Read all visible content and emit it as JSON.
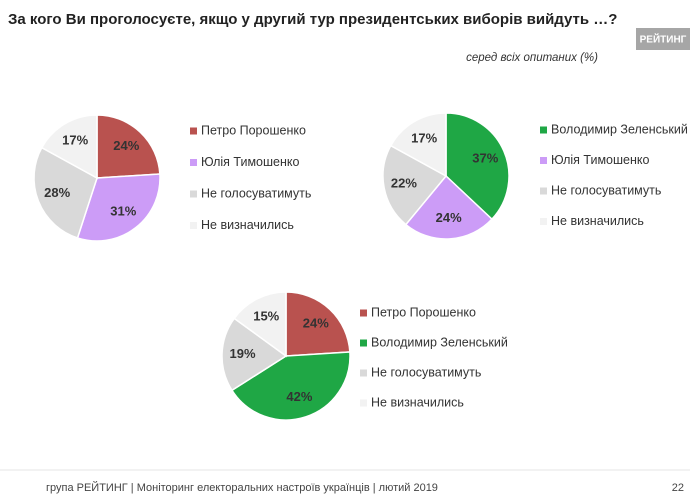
{
  "title": "За кого Ви проголосуєте, якщо у другий тур президентських виборів вийдуть …?",
  "subtitle": "серед всіх опитаних (%)",
  "logo": "РЕЙТИНГ",
  "footer": "група РЕЙТИНГ |  Моніторинг електоральних настроїв українців | лютий  2019",
  "page_number": "22",
  "chart_data": [
    {
      "type": "pie",
      "categories": [
        "Петро Порошенко",
        "Юлія Тимошенко",
        "Не голосуватимуть",
        "Не визначились"
      ],
      "values": [
        24,
        31,
        28,
        17
      ],
      "value_labels": [
        "24%",
        "31%",
        "28%",
        "17%"
      ],
      "colors": [
        "#b9524f",
        "#cc9cf7",
        "#d9d9d9",
        "#f2f2f2"
      ]
    },
    {
      "type": "pie",
      "categories": [
        "Володимир Зеленський",
        "Юлія Тимошенко",
        "Не голосуватимуть",
        "Не визначились"
      ],
      "values": [
        37,
        24,
        22,
        17
      ],
      "value_labels": [
        "37%",
        "24%",
        "22%",
        "17%"
      ],
      "colors": [
        "#1fa745",
        "#cc9cf7",
        "#d9d9d9",
        "#f2f2f2"
      ]
    },
    {
      "type": "pie",
      "categories": [
        "Петро Порошенко",
        "Володимир Зеленський",
        "Не голосуватимуть",
        "Не визначились"
      ],
      "values": [
        24,
        42,
        19,
        15
      ],
      "value_labels": [
        "24%",
        "42%",
        "19%",
        "15%"
      ],
      "colors": [
        "#b9524f",
        "#1fa745",
        "#d9d9d9",
        "#f2f2f2"
      ]
    }
  ]
}
